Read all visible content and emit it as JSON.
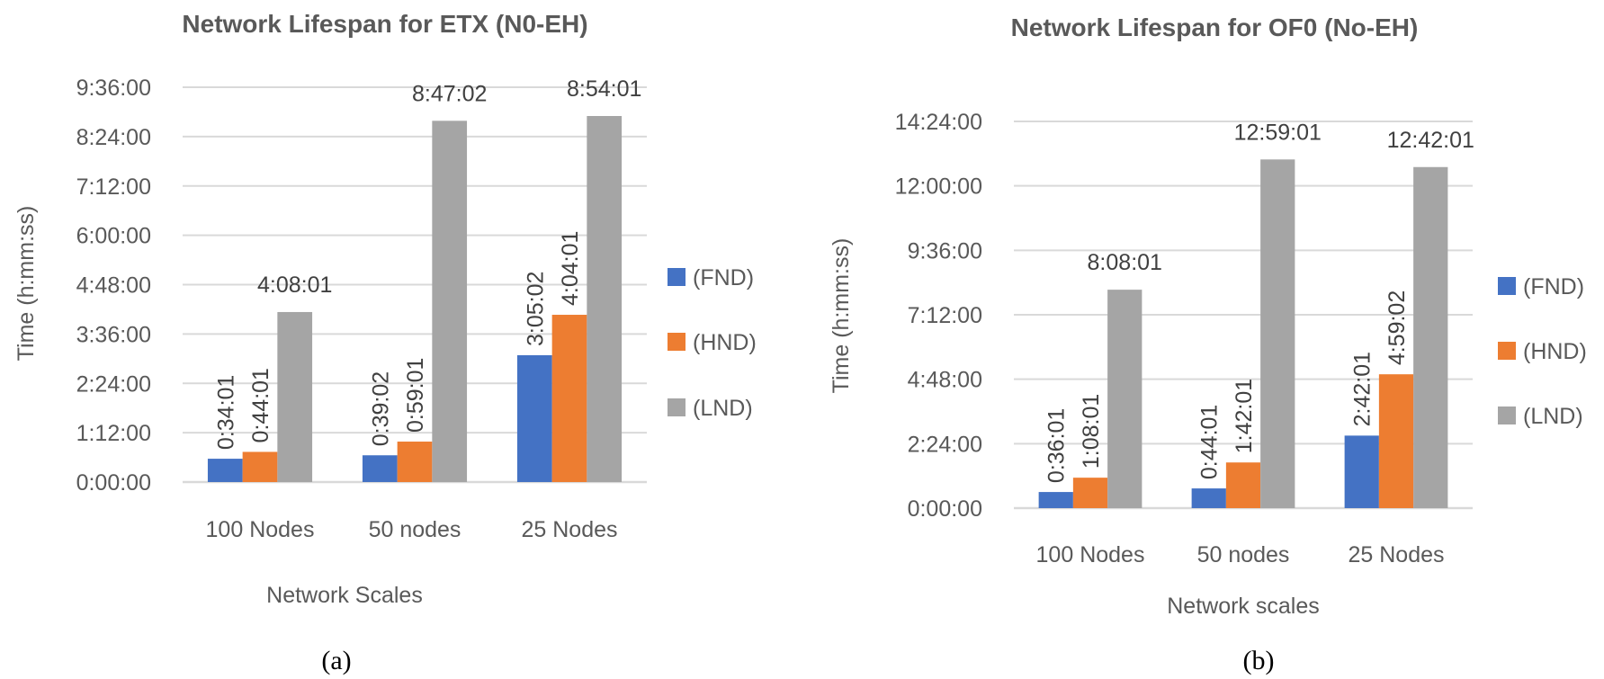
{
  "chart_data": [
    {
      "type": "bar",
      "title": "Network Lifespan for ETX (N0-EH)",
      "xlabel": "Network Scales",
      "ylabel": "Time (h:mm:ss)",
      "caption": "(a)",
      "categories": [
        "100 Nodes",
        "50 nodes",
        "25 Nodes"
      ],
      "yticks": [
        "0:00:00",
        "1:12:00",
        "2:24:00",
        "3:36:00",
        "4:48:00",
        "6:00:00",
        "7:12:00",
        "8:24:00",
        "9:36:00"
      ],
      "ylim": [
        "0:00:00",
        "9:36:00"
      ],
      "grid": true,
      "legend": "right",
      "series": [
        {
          "name": "(FND)",
          "color": "#4472C4",
          "values": [
            "0:34:01",
            "0:39:02",
            "3:05:02"
          ]
        },
        {
          "name": "(HND)",
          "color": "#ED7D31",
          "values": [
            "0:44:01",
            "0:59:01",
            "4:04:01"
          ]
        },
        {
          "name": "(LND)",
          "color": "#A5A5A5",
          "values": [
            "4:08:01",
            "8:47:02",
            "8:54:01"
          ]
        }
      ]
    },
    {
      "type": "bar",
      "title": "Network Lifespan for OF0 (No-EH)",
      "xlabel": "Network scales",
      "ylabel": "Time (h:mm:ss)",
      "caption": "(b)",
      "categories": [
        "100 Nodes",
        "50 nodes",
        "25 Nodes"
      ],
      "yticks": [
        "0:00:00",
        "2:24:00",
        "4:48:00",
        "7:12:00",
        "9:36:00",
        "12:00:00",
        "14:24:00"
      ],
      "ylim": [
        "0:00:00",
        "14:24:00"
      ],
      "grid": true,
      "legend": "right",
      "series": [
        {
          "name": "(FND)",
          "color": "#4472C4",
          "values": [
            "0:36:01",
            "0:44:01",
            "2:42:01"
          ]
        },
        {
          "name": "(HND)",
          "color": "#ED7D31",
          "values": [
            "1:08:01",
            "1:42:01",
            "4:59:02"
          ]
        },
        {
          "name": "(LND)",
          "color": "#A5A5A5",
          "values": [
            "8:08:01",
            "12:59:01",
            "12:42:01"
          ]
        }
      ]
    }
  ]
}
